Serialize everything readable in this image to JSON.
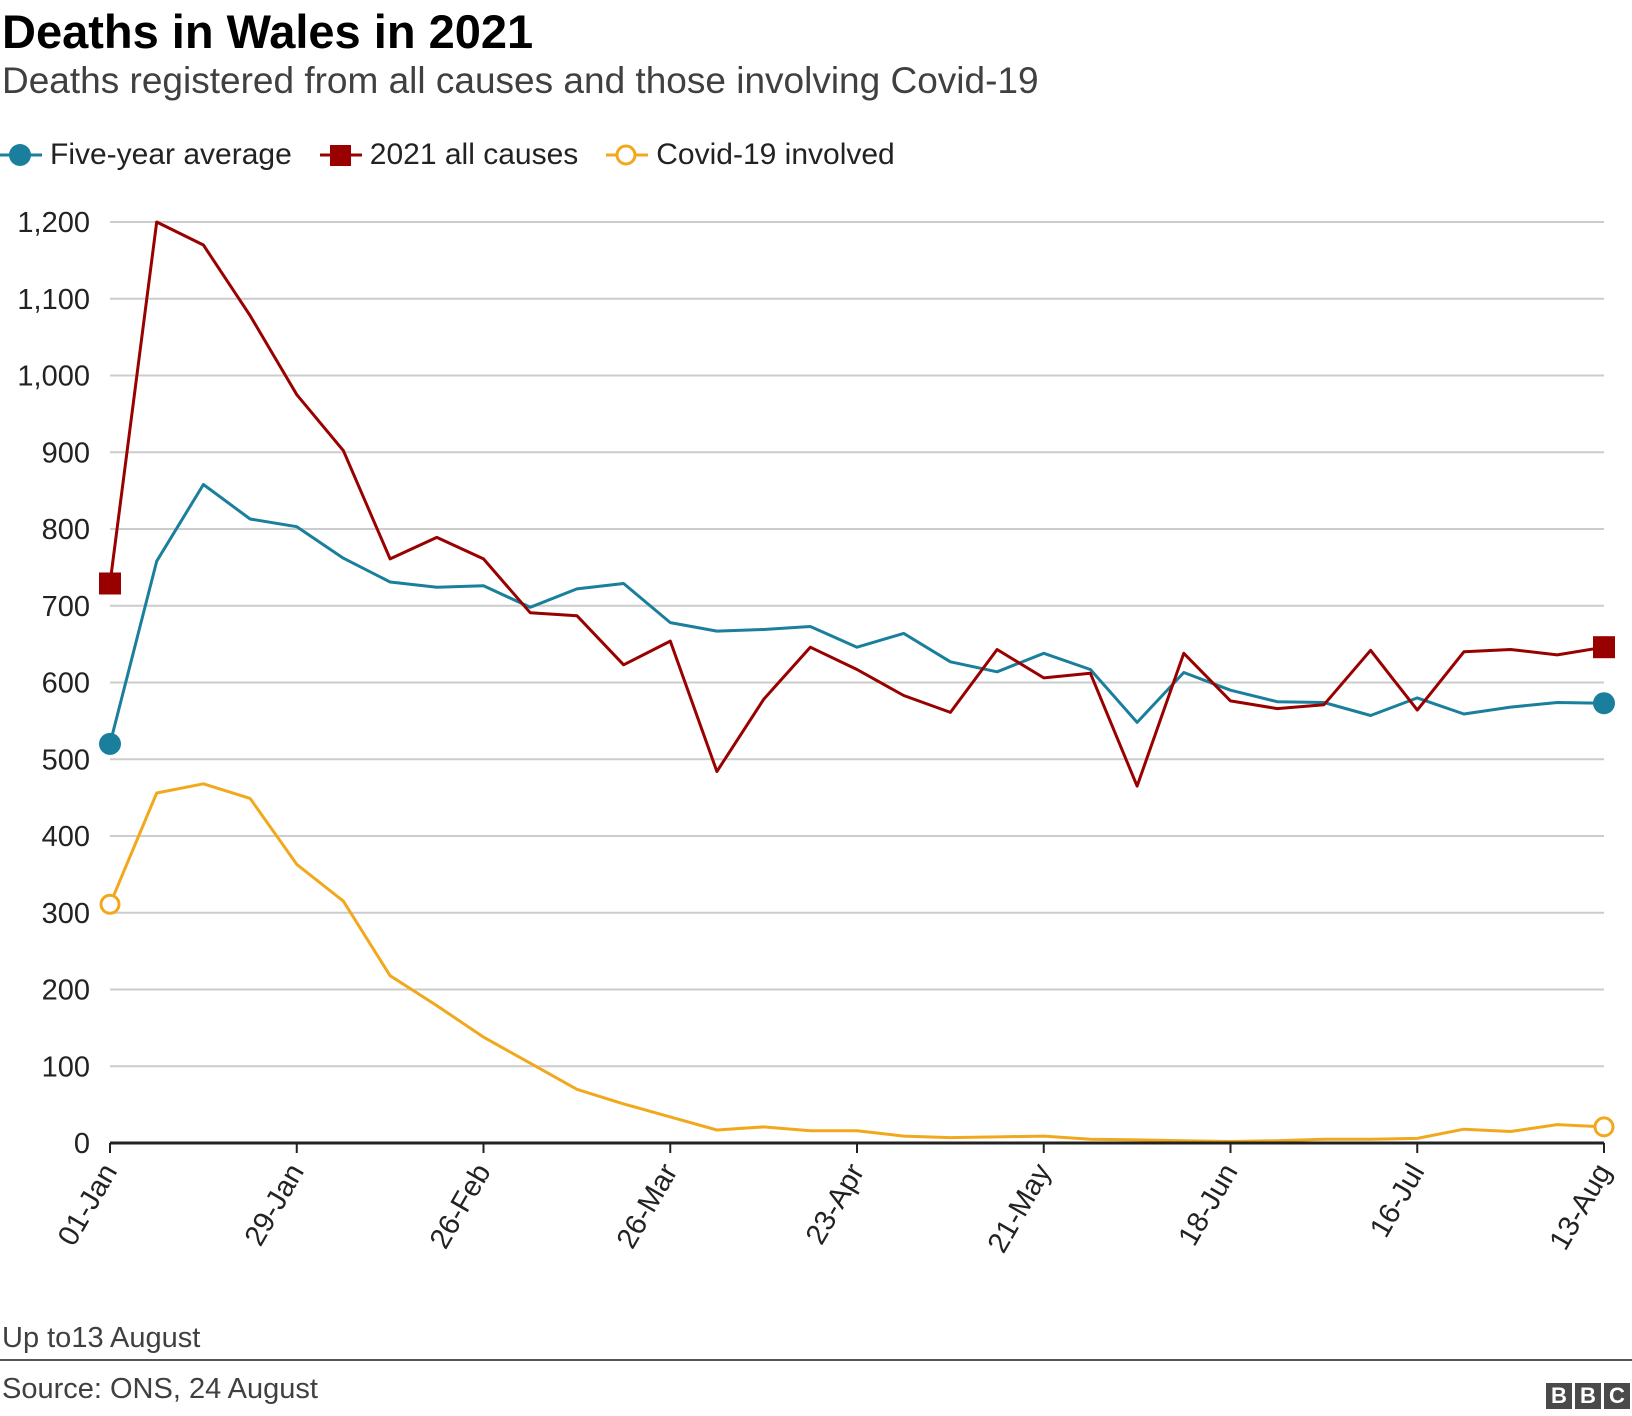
{
  "chart_data": {
    "type": "line",
    "title": "Deaths in Wales in 2021",
    "subtitle": "Deaths registered from all causes and those involving Covid-19",
    "x_tick_labels": [
      "01-Jan",
      "29-Jan",
      "26-Feb",
      "26-Mar",
      "23-Apr",
      "21-May",
      "18-Jun",
      "16-Jul",
      "13-Aug"
    ],
    "ylim": [
      0,
      1200
    ],
    "y_ticks": [
      0,
      100,
      200,
      300,
      400,
      500,
      600,
      700,
      800,
      900,
      1000,
      1100,
      1200
    ],
    "y_tick_labels": [
      "0",
      "100",
      "200",
      "300",
      "400",
      "500",
      "600",
      "700",
      "800",
      "900",
      "1,000",
      "1,100",
      "1,200"
    ],
    "series": [
      {
        "name": "Five-year average",
        "color": "#1a7f9c",
        "marker": "circle",
        "values": [
          520,
          758,
          858,
          813,
          803,
          762,
          731,
          724,
          726,
          698,
          722,
          729,
          678,
          667,
          669,
          673,
          646,
          664,
          627,
          614,
          638,
          617,
          548,
          613,
          590,
          575,
          574,
          557,
          580,
          559,
          568,
          574,
          573
        ]
      },
      {
        "name": "2021 all causes",
        "color": "#990000",
        "marker": "square",
        "values": [
          729,
          1200,
          1170,
          1078,
          975,
          902,
          761,
          789,
          761,
          691,
          687,
          623,
          654,
          484,
          578,
          646,
          617,
          583,
          561,
          643,
          606,
          612,
          465,
          638,
          576,
          566,
          571,
          642,
          564,
          640,
          643,
          636,
          646
        ]
      },
      {
        "name": "Covid-19 involved",
        "color": "#f2a81d",
        "marker": "open-circle",
        "values": [
          311,
          456,
          468,
          449,
          363,
          315,
          218,
          179,
          138,
          104,
          70,
          51,
          34,
          17,
          21,
          16,
          16,
          9,
          7,
          8,
          9,
          5,
          4,
          3,
          2,
          3,
          5,
          5,
          6,
          18,
          15,
          24,
          21
        ]
      }
    ],
    "note": "Up to13 August",
    "source": "Source: ONS, 24 August"
  },
  "branding": {
    "letters": [
      "B",
      "B",
      "C"
    ]
  }
}
